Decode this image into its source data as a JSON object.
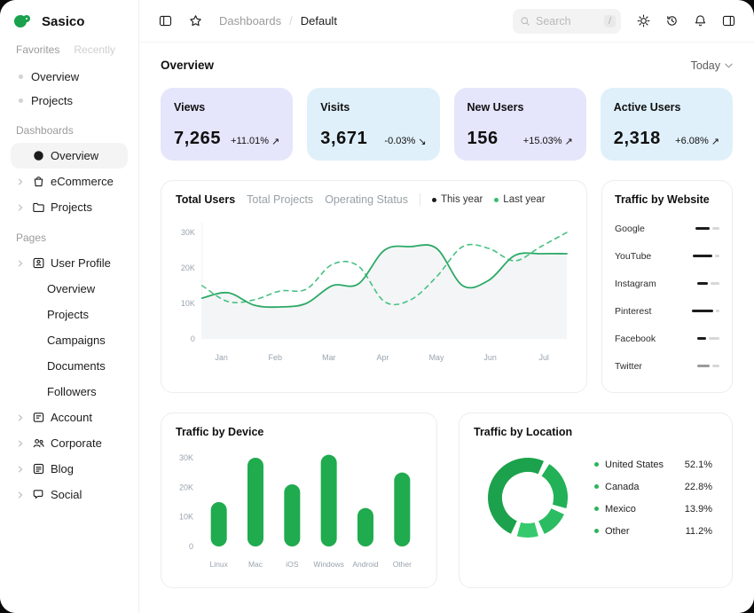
{
  "window": {
    "brand": "Sasico"
  },
  "sidebar": {
    "tabs": [
      {
        "label": "Favorites"
      },
      {
        "label": "Recently"
      }
    ],
    "favorites": [
      {
        "label": "Overview"
      },
      {
        "label": "Projects"
      }
    ],
    "dashboards": {
      "title": "Dashboards",
      "items": [
        {
          "label": "Overview",
          "icon": "pie-chart-icon",
          "selected": true
        },
        {
          "label": "eCommerce",
          "icon": "shopping-bag-icon"
        },
        {
          "label": "Projects",
          "icon": "folder-icon"
        }
      ]
    },
    "pages": {
      "title": "Pages",
      "user_profile": {
        "label": "User Profile",
        "icon": "id-card-icon",
        "children": [
          {
            "label": "Overview"
          },
          {
            "label": "Projects"
          },
          {
            "label": "Campaigns"
          },
          {
            "label": "Documents"
          },
          {
            "label": "Followers"
          }
        ]
      },
      "items": [
        {
          "label": "Account",
          "icon": "id-badge-icon"
        },
        {
          "label": "Corporate",
          "icon": "users-icon"
        },
        {
          "label": "Blog",
          "icon": "blog-icon"
        },
        {
          "label": "Social",
          "icon": "chat-icon"
        }
      ]
    }
  },
  "header": {
    "breadcrumb": {
      "parent": "Dashboards",
      "separator": "/",
      "current": "Default"
    },
    "search": {
      "placeholder": "Search",
      "shortcut": "/"
    }
  },
  "content": {
    "title": "Overview",
    "range_selector": "Today"
  },
  "stats": [
    {
      "label": "Views",
      "value": "7,265",
      "delta": "+11.01%",
      "arrow": "↗",
      "bg": "#e5e5fb"
    },
    {
      "label": "Visits",
      "value": "3,671",
      "delta": "-0.03%",
      "arrow": "↘",
      "bg": "#dff0fa"
    },
    {
      "label": "New Users",
      "value": "156",
      "delta": "+15.03%",
      "arrow": "↗",
      "bg": "#e5e5fb"
    },
    {
      "label": "Active Users",
      "value": "2,318",
      "delta": "+6.08%",
      "arrow": "↗",
      "bg": "#dff0fa"
    }
  ],
  "chart_data": [
    {
      "type": "line",
      "title_tabs": [
        "Total Users",
        "Total Projects",
        "Operating Status"
      ],
      "active_tab": "Total Users",
      "legend": [
        {
          "name": "This year",
          "color": "#1c1c1c"
        },
        {
          "name": "Last year",
          "color": "#35bd6f"
        }
      ],
      "x_ticks": [
        "Jan",
        "Feb",
        "Mar",
        "Apr",
        "May",
        "Jun",
        "Jul"
      ],
      "y_ticks": [
        "0",
        "10K",
        "20K",
        "30K"
      ],
      "ylim_k": [
        0,
        33
      ],
      "series": [
        {
          "name": "This year",
          "style": "solid",
          "color": "#2ba966",
          "values_k": [
            11.5,
            13,
            9.5,
            9,
            10,
            15,
            15.5,
            25,
            26,
            25.5,
            15,
            16.5,
            23.5,
            24,
            24
          ]
        },
        {
          "name": "Last year",
          "style": "dashed",
          "color": "#46c184",
          "values_k": [
            15,
            10.5,
            11,
            13.5,
            14,
            21,
            20.5,
            10.5,
            11,
            17.5,
            26,
            25.5,
            22,
            26,
            30
          ]
        }
      ]
    },
    {
      "type": "bar",
      "title": "Traffic by Device",
      "categories": [
        "Linux",
        "Mac",
        "iOS",
        "Windows",
        "Android",
        "Other"
      ],
      "values_k": [
        15,
        30,
        21,
        31,
        13,
        25
      ],
      "y_ticks": [
        "0",
        "10K",
        "20K",
        "30K"
      ],
      "ylim_k": [
        0,
        33
      ],
      "bar_color": "#1fab4e"
    },
    {
      "type": "pie",
      "title": "Traffic by Location",
      "labels": [
        "United States",
        "Canada",
        "Mexico",
        "Other"
      ],
      "values_pct": [
        52.1,
        22.8,
        13.9,
        11.2
      ],
      "display": [
        "52.1%",
        "22.8%",
        "13.9%",
        "11.2%"
      ],
      "colors": [
        "#1ca24c",
        "#23b157",
        "#2bbc61",
        "#37c96e"
      ],
      "legend_dot_color": "#2bb55a"
    },
    {
      "type": "table",
      "title": "Traffic by Website",
      "rows": [
        {
          "label": "Google",
          "segments": [
            {
              "w": 16,
              "shade": "dark"
            },
            {
              "w": 8,
              "shade": "light"
            }
          ]
        },
        {
          "label": "YouTube",
          "segments": [
            {
              "w": 22,
              "shade": "dark"
            },
            {
              "w": 5,
              "shade": "light"
            }
          ]
        },
        {
          "label": "Instagram",
          "segments": [
            {
              "w": 12,
              "shade": "dark"
            },
            {
              "w": 10,
              "shade": "light"
            }
          ]
        },
        {
          "label": "Pinterest",
          "segments": [
            {
              "w": 24,
              "shade": "dark"
            },
            {
              "w": 4,
              "shade": "light"
            }
          ]
        },
        {
          "label": "Facebook",
          "segments": [
            {
              "w": 10,
              "shade": "dark"
            },
            {
              "w": 12,
              "shade": "light"
            }
          ]
        },
        {
          "label": "Twitter",
          "segments": [
            {
              "w": 14,
              "shade": "mid"
            },
            {
              "w": 8,
              "shade": "light"
            }
          ]
        }
      ],
      "shade_colors": {
        "dark": "#1c1c1c",
        "mid": "#9b9b9b",
        "light": "#d7d7d7"
      }
    }
  ]
}
